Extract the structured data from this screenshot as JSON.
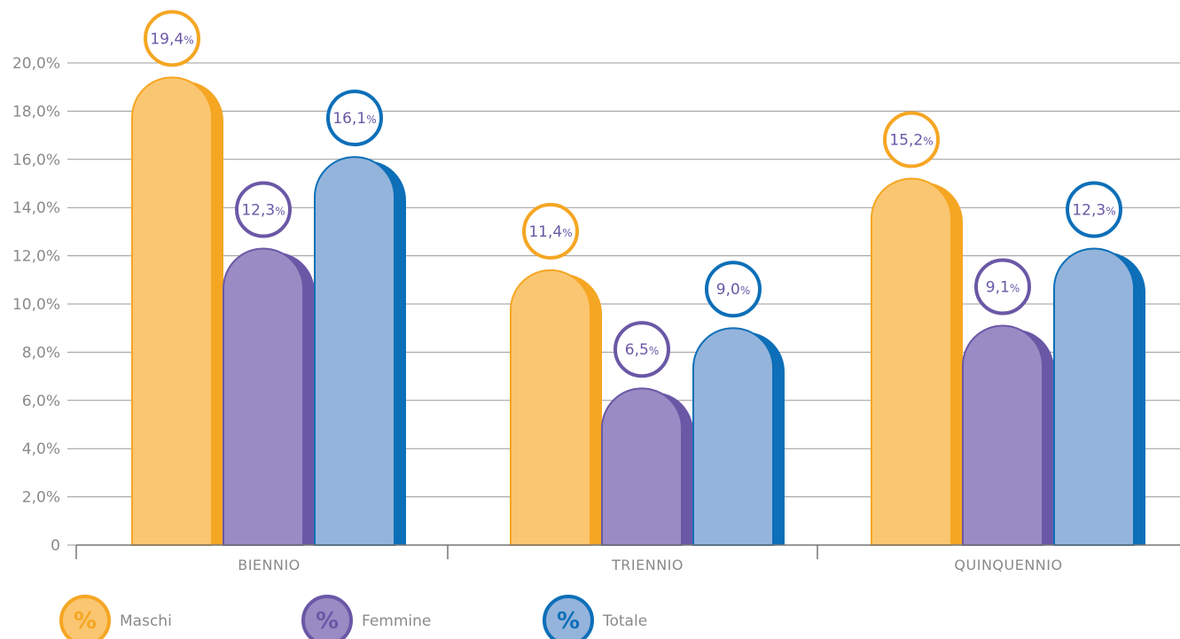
{
  "chart_data": {
    "type": "bar",
    "categories": [
      "BIENNIO",
      "TRIENNIO",
      "QUINQUENNIO"
    ],
    "series": [
      {
        "name": "Maschi",
        "values": [
          19.4,
          11.4,
          15.2
        ],
        "labels": [
          "19,4",
          "11,4",
          "15,2"
        ],
        "color_light": "#fbc671",
        "color_dark": "#f5a623"
      },
      {
        "name": "Femmine",
        "values": [
          12.3,
          6.5,
          9.1
        ],
        "labels": [
          "12,3",
          "6,5",
          "9,1"
        ],
        "color_light": "#9a8bc4",
        "color_dark": "#6a58a6"
      },
      {
        "name": "Totale",
        "values": [
          16.1,
          9.0,
          12.3
        ],
        "labels": [
          "16,1",
          "9,0",
          "12,3"
        ],
        "color_light": "#94b4dc",
        "color_dark": "#0d6fb8"
      }
    ],
    "ylim": [
      0,
      20
    ],
    "yticks": [
      0,
      2,
      4,
      6,
      8,
      10,
      12,
      14,
      16,
      18,
      20
    ],
    "ytick_labels": [
      "0",
      "2,0%",
      "4,0%",
      "6,0%",
      "8,0%",
      "10,0%",
      "12,0%",
      "14,0%",
      "16,0%",
      "18,0%",
      "20,0%"
    ],
    "value_suffix": "%",
    "legend_symbol": "%",
    "grid": true,
    "legend_position": "bottom-left",
    "label_text_color": "#6a58a6",
    "axis_text_color": "#8a8a8a",
    "grid_color": "#9a9a9a"
  }
}
